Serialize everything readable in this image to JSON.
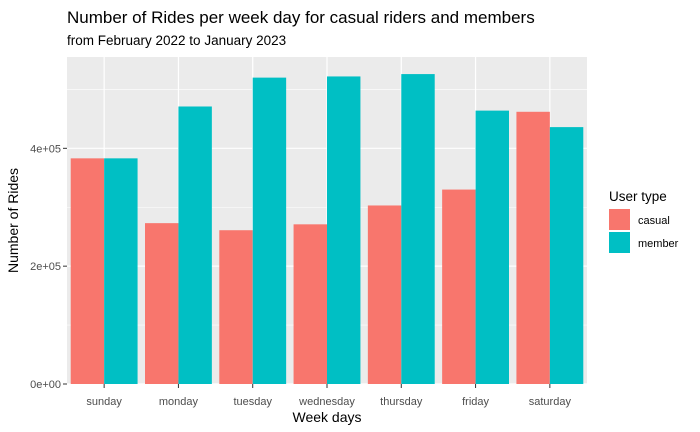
{
  "chart_data": {
    "type": "bar",
    "title": "Number of Rides per week day for casual riders and members",
    "subtitle": "from February 2022 to January 2023",
    "xlabel": "Week days",
    "ylabel": "Number of Rides",
    "categories": [
      "sunday",
      "monday",
      "tuesday",
      "wednesday",
      "thursday",
      "friday",
      "saturday"
    ],
    "series": [
      {
        "name": "casual",
        "color": "#F8766D",
        "values": [
          383000,
          273000,
          261000,
          271000,
          303000,
          330000,
          462000
        ]
      },
      {
        "name": "member",
        "color": "#00BFC4",
        "values": [
          383000,
          471000,
          520000,
          522000,
          526000,
          464000,
          436000
        ]
      }
    ],
    "ylim": [
      0,
      555000
    ],
    "yticks": [
      0,
      200000,
      400000
    ],
    "ytick_labels": [
      "0e+00",
      "2e+05",
      "4e+05"
    ],
    "grid": true,
    "panel_color": "#EBEBEB",
    "legend": {
      "title": "User type",
      "position": "right"
    }
  }
}
